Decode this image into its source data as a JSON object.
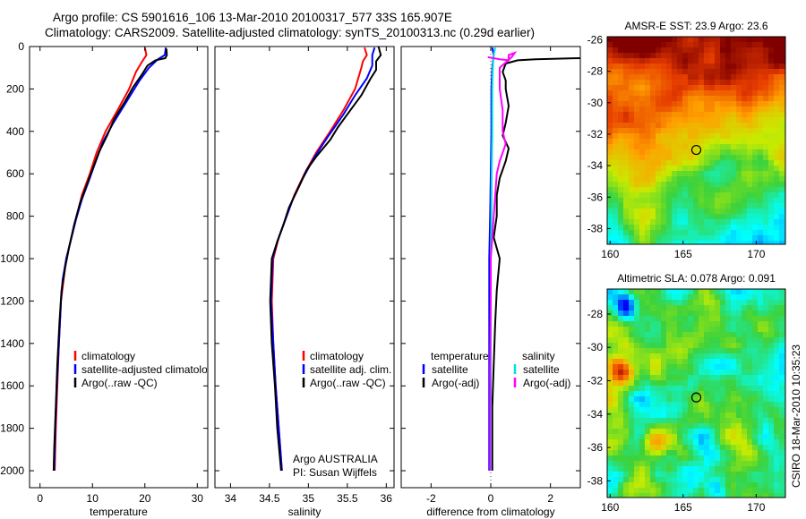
{
  "title_line1": "Argo profile: CS 5901616_106 13-Mar-2010 20100317_577 33S 165.907E",
  "title_line2": "Climatology: CARS2009. Satellite-adjusted climatology: synTS_20100313.nc (0.29d earlier)",
  "side_stamp": "CSIRO 18-Mar-2010 10:35:23",
  "chart_data": [
    {
      "id": "temperature-profile",
      "type": "line",
      "xlabel": "temperature",
      "ylabel": "",
      "xlim": [
        -2,
        32
      ],
      "ylim": [
        2080,
        0
      ],
      "xticks": [
        0,
        10,
        20,
        30
      ],
      "yticks": [
        0,
        200,
        400,
        600,
        800,
        1000,
        1200,
        1400,
        1600,
        1800,
        2000
      ],
      "legend": [
        "climatology",
        "satellite-adjusted climatology",
        "Argo(..raw -QC)"
      ],
      "series": [
        {
          "name": "climatology",
          "color": "#ff0000",
          "points": [
            [
              20.0,
              5
            ],
            [
              20.3,
              40
            ],
            [
              19.5,
              70
            ],
            [
              18.3,
              120
            ],
            [
              17.0,
              200
            ],
            [
              14.8,
              300
            ],
            [
              12.5,
              400
            ],
            [
              10.8,
              500
            ],
            [
              9.5,
              600
            ],
            [
              8.0,
              700
            ],
            [
              7.0,
              800
            ],
            [
              6.0,
              900
            ],
            [
              5.0,
              1000
            ],
            [
              4.5,
              1100
            ],
            [
              4.0,
              1200
            ],
            [
              3.6,
              1400
            ],
            [
              3.3,
              1600
            ],
            [
              3.0,
              1800
            ],
            [
              2.8,
              2000
            ]
          ]
        },
        {
          "name": "satellite-adjusted climatology",
          "color": "#0000ff",
          "points": [
            [
              24.0,
              5
            ],
            [
              23.8,
              40
            ],
            [
              22.5,
              60
            ],
            [
              20.8,
              100
            ],
            [
              19.0,
              160
            ],
            [
              16.5,
              260
            ],
            [
              14.0,
              360
            ],
            [
              12.0,
              450
            ],
            [
              10.5,
              550
            ],
            [
              9.2,
              640
            ],
            [
              8.0,
              720
            ],
            [
              6.8,
              820
            ],
            [
              5.8,
              920
            ],
            [
              5.0,
              1000
            ],
            [
              4.3,
              1100
            ],
            [
              4.0,
              1200
            ],
            [
              3.6,
              1400
            ],
            [
              3.2,
              1600
            ],
            [
              2.9,
              1800
            ],
            [
              2.7,
              2000
            ]
          ]
        },
        {
          "name": "Argo(..raw -QC)",
          "color": "#000000",
          "points": [
            [
              24.1,
              10
            ],
            [
              24.2,
              40
            ],
            [
              23.9,
              55
            ],
            [
              22.0,
              65
            ],
            [
              20.5,
              90
            ],
            [
              19.5,
              130
            ],
            [
              17.8,
              190
            ],
            [
              16.2,
              260
            ],
            [
              14.2,
              340
            ],
            [
              12.8,
              420
            ],
            [
              11.2,
              500
            ],
            [
              10.0,
              580
            ],
            [
              8.8,
              660
            ],
            [
              7.6,
              740
            ],
            [
              6.5,
              840
            ],
            [
              5.6,
              940
            ],
            [
              4.8,
              1040
            ],
            [
              4.1,
              1150
            ],
            [
              3.7,
              1300
            ],
            [
              3.3,
              1500
            ],
            [
              3.0,
              1700
            ],
            [
              2.7,
              1900
            ],
            [
              2.6,
              2000
            ]
          ]
        }
      ]
    },
    {
      "id": "salinity-profile",
      "type": "line",
      "xlabel": "salinity",
      "ylabel": "",
      "xlim": [
        33.8,
        36.1
      ],
      "ylim": [
        2080,
        0
      ],
      "xticks": [
        34,
        34.5,
        35,
        35.5,
        36
      ],
      "legend": [
        "climatology",
        "satellite adj. clim.",
        "Argo(..raw -QC)"
      ],
      "annotation_line1": "Argo AUSTRALIA",
      "annotation_line2": "PI: Susan Wijffels",
      "series": [
        {
          "name": "climatology",
          "color": "#ff0000",
          "points": [
            [
              35.72,
              5
            ],
            [
              35.75,
              40
            ],
            [
              35.7,
              70
            ],
            [
              35.68,
              100
            ],
            [
              35.6,
              200
            ],
            [
              35.45,
              300
            ],
            [
              35.28,
              400
            ],
            [
              35.1,
              500
            ],
            [
              34.95,
              600
            ],
            [
              34.82,
              700
            ],
            [
              34.72,
              800
            ],
            [
              34.62,
              900
            ],
            [
              34.55,
              1000
            ],
            [
              34.53,
              1200
            ],
            [
              34.55,
              1400
            ],
            [
              34.58,
              1600
            ],
            [
              34.62,
              1800
            ],
            [
              34.66,
              2000
            ]
          ]
        },
        {
          "name": "satellite adj. clim.",
          "color": "#0000ff",
          "points": [
            [
              35.85,
              5
            ],
            [
              35.82,
              40
            ],
            [
              35.82,
              90
            ],
            [
              35.75,
              150
            ],
            [
              35.6,
              230
            ],
            [
              35.45,
              320
            ],
            [
              35.26,
              420
            ],
            [
              35.08,
              520
            ],
            [
              34.93,
              620
            ],
            [
              34.8,
              720
            ],
            [
              34.7,
              820
            ],
            [
              34.6,
              920
            ],
            [
              34.54,
              1000
            ],
            [
              34.52,
              1200
            ],
            [
              34.55,
              1400
            ],
            [
              34.58,
              1600
            ],
            [
              34.62,
              1800
            ],
            [
              34.66,
              2000
            ]
          ]
        },
        {
          "name": "Argo(..raw -QC)",
          "color": "#000000",
          "points": [
            [
              35.9,
              0
            ],
            [
              35.93,
              40
            ],
            [
              35.9,
              55
            ],
            [
              35.87,
              70
            ],
            [
              35.87,
              110
            ],
            [
              35.8,
              150
            ],
            [
              35.68,
              230
            ],
            [
              35.5,
              320
            ],
            [
              35.38,
              380
            ],
            [
              35.28,
              440
            ],
            [
              35.1,
              520
            ],
            [
              34.98,
              580
            ],
            [
              34.88,
              660
            ],
            [
              34.75,
              760
            ],
            [
              34.68,
              840
            ],
            [
              34.6,
              920
            ],
            [
              34.53,
              1000
            ],
            [
              34.51,
              1200
            ],
            [
              34.53,
              1400
            ],
            [
              34.57,
              1600
            ],
            [
              34.6,
              1800
            ],
            [
              34.65,
              2000
            ]
          ]
        }
      ]
    },
    {
      "id": "difference-profile",
      "type": "line",
      "xlabel": "difference from climatology",
      "ylabel": "",
      "xlim": [
        -3,
        3
      ],
      "ylim": [
        2080,
        0
      ],
      "xticks": [
        -2,
        0,
        2
      ],
      "legend_temperature_heading": "temperature",
      "legend_salinity_heading": "salinity",
      "legend": [
        "satellite",
        "Argo(-adj)",
        "satellite",
        "Argo(-adj)"
      ],
      "series": [
        {
          "name": "satellite",
          "group": "temperature",
          "color": "#0000ff",
          "points": [
            [
              0.05,
              5
            ],
            [
              0.1,
              40
            ],
            [
              0.05,
              100
            ],
            [
              0.02,
              200
            ],
            [
              0.02,
              400
            ],
            [
              0.0,
              600
            ],
            [
              -0.02,
              800
            ],
            [
              -0.05,
              1000
            ],
            [
              -0.05,
              1200
            ],
            [
              -0.05,
              1500
            ],
            [
              -0.05,
              1800
            ],
            [
              -0.05,
              2000
            ]
          ]
        },
        {
          "name": "Argo(-adj)",
          "group": "temperature",
          "color": "#000000",
          "points": [
            [
              3.0,
              55
            ],
            [
              1.5,
              60
            ],
            [
              0.9,
              65
            ],
            [
              0.5,
              80
            ],
            [
              0.4,
              120
            ],
            [
              0.5,
              160
            ],
            [
              0.5,
              200
            ],
            [
              0.6,
              280
            ],
            [
              0.5,
              360
            ],
            [
              0.4,
              420
            ],
            [
              0.6,
              480
            ],
            [
              0.5,
              540
            ],
            [
              0.3,
              620
            ],
            [
              0.2,
              700
            ],
            [
              0.2,
              800
            ],
            [
              0.1,
              900
            ],
            [
              0.3,
              1000
            ],
            [
              0.2,
              1150
            ],
            [
              0.15,
              1300
            ],
            [
              0.1,
              1500
            ],
            [
              0.05,
              1700
            ],
            [
              0.05,
              1900
            ],
            [
              0.05,
              2000
            ]
          ]
        },
        {
          "name": "satellite",
          "group": "salinity",
          "color": "#00e0e0",
          "points": [
            [
              0.15,
              5
            ],
            [
              0.1,
              40
            ],
            [
              0.07,
              100
            ],
            [
              0.05,
              200
            ],
            [
              0.05,
              400
            ],
            [
              0.03,
              600
            ],
            [
              0.02,
              800
            ],
            [
              0.0,
              1000
            ],
            [
              0.0,
              1200
            ],
            [
              0.0,
              1500
            ],
            [
              0.0,
              1800
            ],
            [
              0.0,
              2000
            ]
          ]
        },
        {
          "name": "Argo(-adj)",
          "group": "salinity",
          "color": "#ff00ff",
          "points": [
            [
              -0.1,
              50
            ],
            [
              0.3,
              60
            ],
            [
              0.6,
              65
            ],
            [
              0.6,
              40
            ],
            [
              0.8,
              30
            ],
            [
              0.7,
              50
            ],
            [
              0.3,
              100
            ],
            [
              0.3,
              200
            ],
            [
              0.4,
              300
            ],
            [
              0.4,
              400
            ],
            [
              0.5,
              460
            ],
            [
              0.3,
              540
            ],
            [
              0.2,
              600
            ],
            [
              0.15,
              700
            ],
            [
              0.1,
              800
            ],
            [
              0.05,
              900
            ],
            [
              0.0,
              1000
            ],
            [
              0.0,
              1200
            ],
            [
              -0.02,
              1500
            ],
            [
              -0.02,
              1800
            ],
            [
              -0.02,
              2000
            ]
          ]
        }
      ]
    },
    {
      "id": "amsre-sst-map",
      "type": "heatmap",
      "title": "AMSR-E SST: 23.9 Argo: 23.6",
      "xlim": [
        159.8,
        172
      ],
      "ylim": [
        -39,
        -25.8
      ],
      "xticks": [
        160,
        165,
        170
      ],
      "yticks": [
        -26,
        -28,
        -30,
        -32,
        -34,
        -36,
        -38
      ],
      "marker": {
        "lon": 165.9,
        "lat": -33
      }
    },
    {
      "id": "altimetric-sla-map",
      "type": "heatmap",
      "title": "Altimetric SLA: 0.078 Argo: 0.091",
      "xlim": [
        159.8,
        172
      ],
      "ylim": [
        -39,
        -26.5
      ],
      "xticks": [
        160,
        165,
        170
      ],
      "yticks": [
        -28,
        -30,
        -32,
        -34,
        -36,
        -38
      ],
      "marker": {
        "lon": 165.9,
        "lat": -33
      }
    }
  ]
}
